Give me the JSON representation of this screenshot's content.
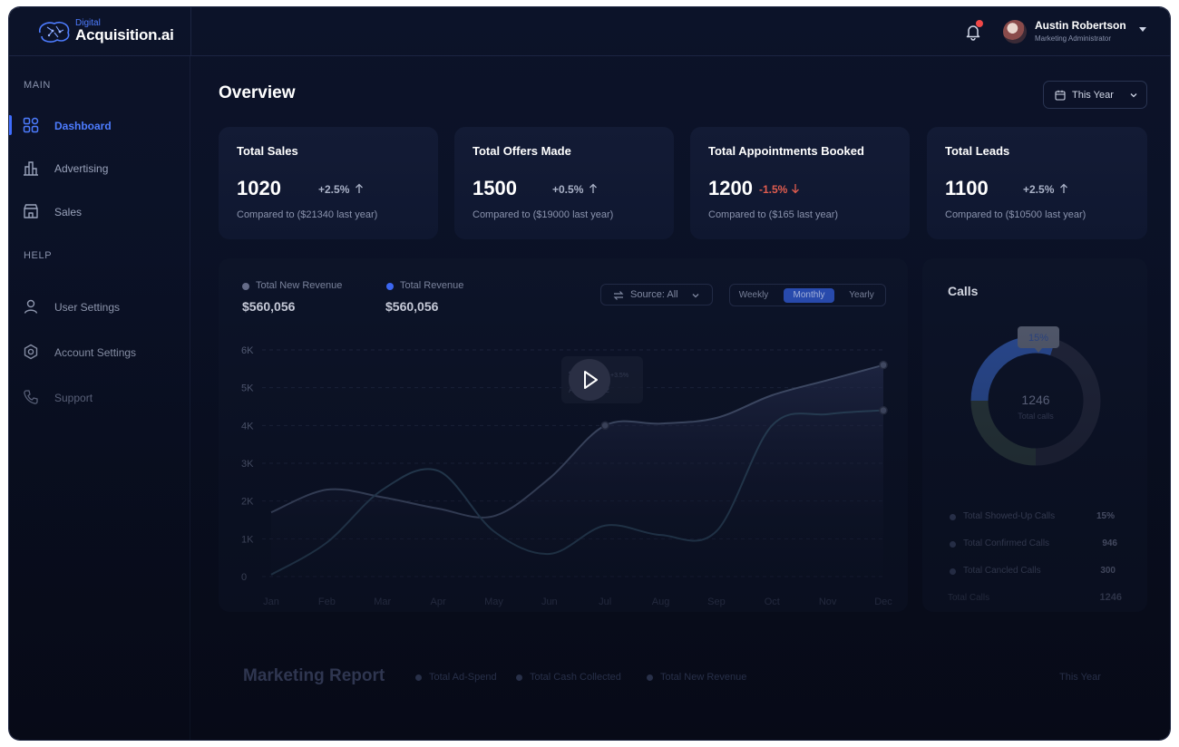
{
  "brand": {
    "top": "Digital",
    "main": "Acquisition.ai"
  },
  "user": {
    "name": "Austin Robertson",
    "role": "Marketing Administrator"
  },
  "sidebar": {
    "main_label": "MAIN",
    "help_label": "HELP",
    "items": [
      {
        "label": "Dashboard",
        "icon": "grid-icon",
        "active": true
      },
      {
        "label": "Advertising",
        "icon": "bar-chart-icon"
      },
      {
        "label": "Sales",
        "icon": "store-icon"
      },
      {
        "label": "User Settings",
        "icon": "user-icon"
      },
      {
        "label": "Account Settings",
        "icon": "gear-icon"
      },
      {
        "label": "Support",
        "icon": "phone-icon"
      }
    ]
  },
  "overview": {
    "title": "Overview",
    "period": "This Year"
  },
  "stats": [
    {
      "title": "Total Sales",
      "value": "1020",
      "change": "+2.5%",
      "direction": "up",
      "sub": "Compared to ($21340 last year)"
    },
    {
      "title": "Total Offers Made",
      "value": "1500",
      "change": "+0.5%",
      "direction": "up",
      "sub": "Compared to ($19000 last year)"
    },
    {
      "title": "Total Appointments Booked",
      "value": "1200",
      "change": "-1.5%",
      "direction": "down",
      "sub": "Compared to ($165 last year)"
    },
    {
      "title": "Total Leads",
      "value": "1100",
      "change": "+2.5%",
      "direction": "up",
      "sub": "Compared to ($10500 last year)"
    }
  ],
  "revenue": {
    "legend": [
      {
        "name": "Total New Revenue",
        "value": "$560,056",
        "color": "#6b7290"
      },
      {
        "name": "Total Revenue",
        "value": "$560,056",
        "color": "#3f6dff"
      }
    ],
    "source": "Source: All",
    "periods": [
      "Weekly",
      "Monthly",
      "Yearly"
    ],
    "active_period": "Monthly",
    "tooltip": {
      "value": "$560,056",
      "change": "+3.5%",
      "date": "August 2022"
    }
  },
  "chart_data": {
    "type": "line",
    "categories": [
      "Jan",
      "Feb",
      "Mar",
      "Apr",
      "May",
      "Jun",
      "Jul",
      "Aug",
      "Sep",
      "Oct",
      "Nov",
      "Dec"
    ],
    "y_ticks": [
      "6K",
      "5K",
      "4K",
      "3K",
      "2K",
      "1K",
      "0"
    ],
    "ylim": [
      0,
      6000
    ],
    "series": [
      {
        "name": "Total Revenue",
        "values": [
          1700,
          2300,
          2100,
          1800,
          1600,
          2600,
          4000,
          4050,
          4200,
          4800,
          5200,
          5600
        ]
      },
      {
        "name": "Total New Revenue",
        "values": [
          50,
          900,
          2300,
          2800,
          1200,
          600,
          1350,
          1100,
          1200,
          4000,
          4300,
          4400
        ]
      }
    ]
  },
  "calls": {
    "title": "Calls",
    "total": "1246",
    "total_label": "Total calls",
    "badge": "15%",
    "rows": [
      {
        "label": "Total Showed-Up Calls",
        "value": "15%"
      },
      {
        "label": "Total Confirmed Calls",
        "value": "946"
      },
      {
        "label": "Total Cancled Calls",
        "value": "300"
      }
    ],
    "total_row": {
      "label": "Total Calls",
      "value": "1246"
    },
    "donut": {
      "showed_fraction": 0.3,
      "confirmed_fraction": 0.45,
      "cancelled_fraction": 0.25
    }
  },
  "marketing": {
    "title": "Marketing Report",
    "legend": [
      "Total Ad-Spend",
      "Total Cash Collected",
      "Total New Revenue"
    ],
    "period": "This Year"
  }
}
